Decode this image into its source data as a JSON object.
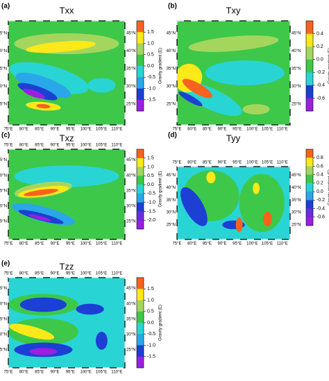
{
  "figure": {
    "colorbar_label": "Gravity gradient (E)",
    "lon_labels": [
      "75°E",
      "80°E",
      "85°E",
      "90°E",
      "95°E",
      "100°E",
      "105°E",
      "110°E"
    ],
    "lat_labels": [
      "45°N",
      "40°N",
      "35°N",
      "30°N",
      "25°N"
    ],
    "panels": [
      {
        "label": "(a)",
        "title": "Txx",
        "colorbar_ticks": [
          1.5,
          {
            "value": 1,
            "label": "1.0"
          },
          0.5,
          {
            "value": 0,
            "label": "0.0"
          },
          -0.5,
          {
            "value": -1,
            "label": "-1.0"
          },
          -1.5
        ],
        "colorbar_colors": [
          "#f7631e",
          "#fbe91a",
          "#a4d65e",
          "#3dc84a",
          "#29d4d4",
          "#2aa7e8",
          "#1c3fd4",
          "#9b1fe0"
        ]
      },
      {
        "label": "(b)",
        "title": "Txy",
        "colorbar_ticks": [
          0.4,
          0.2,
          {
            "value": 0,
            "label": "0.0"
          },
          -0.2,
          -0.4,
          -0.6
        ],
        "colorbar_colors": [
          "#f7631e",
          "#fbe91a",
          "#a4d65e",
          "#3dc84a",
          "#29d4d4",
          "#1c3fd4",
          "#9b1fe0"
        ]
      },
      {
        "label": "(c)",
        "title": "Txz",
        "colorbar_ticks": [
          1.5,
          {
            "value": 1,
            "label": "1.0"
          },
          0.5,
          {
            "value": 0,
            "label": "0.0"
          },
          -0.5,
          {
            "value": -1,
            "label": "-1.0"
          },
          -1.5,
          {
            "value": -2,
            "label": "-2.0"
          }
        ],
        "colorbar_colors": [
          "#f7631e",
          "#fbe91a",
          "#a4d65e",
          "#3dc84a",
          "#29d4d4",
          "#2aa7e8",
          "#1c3fd4",
          "#6a2de0",
          "#9b1fe0"
        ]
      },
      {
        "label": "(d)",
        "title": "Tyy",
        "colorbar_ticks": [
          0.8,
          0.6,
          0.4,
          0.2,
          {
            "value": 0,
            "label": "0.0"
          },
          -0.2,
          -0.4,
          -0.6
        ],
        "colorbar_colors": [
          "#f7631e",
          "#fbe91a",
          "#a4d65e",
          "#3dc84a",
          "#29d4d4",
          "#2aa7e8",
          "#1c3fd4",
          "#6a2de0",
          "#9b1fe0"
        ]
      },
      {
        "label": "(e)",
        "title": "Tzz",
        "colorbar_ticks": [
          1.5,
          {
            "value": 1,
            "label": "1.0"
          },
          0.5,
          {
            "value": 0,
            "label": "0.0"
          },
          -0.5,
          {
            "value": -1,
            "label": "-1.0"
          },
          -1.5
        ],
        "colorbar_colors": [
          "#f7631e",
          "#fbe91a",
          "#a4d65e",
          "#3dc84a",
          "#29d4d4",
          "#2aa7e8",
          "#1c3fd4",
          "#9b1fe0"
        ]
      }
    ]
  }
}
